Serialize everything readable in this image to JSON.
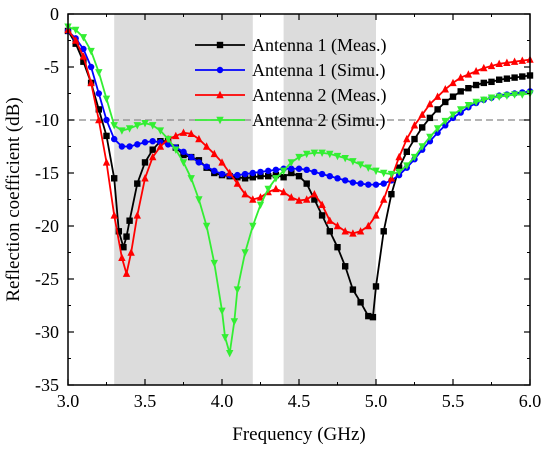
{
  "chart_data": {
    "type": "line",
    "title": "",
    "xlabel": "Frequency (GHz)",
    "ylabel": "Reflection coefficient (dB)",
    "xlim": [
      3.0,
      6.0
    ],
    "ylim": [
      -35,
      0
    ],
    "xticks": [
      "3.0",
      "3.5",
      "4.0",
      "4.5",
      "5.0",
      "5.5",
      "6.0"
    ],
    "yticks": [
      "0",
      "-5",
      "-10",
      "-15",
      "-20",
      "-25",
      "-30",
      "-35"
    ],
    "xtick_values": [
      3.0,
      3.5,
      4.0,
      4.5,
      5.0,
      5.5,
      6.0
    ],
    "ytick_values": [
      0,
      -5,
      -10,
      -15,
      -20,
      -25,
      -30,
      -35
    ],
    "grid": false,
    "legend_position": "top-right",
    "shaded_bands": [
      [
        3.3,
        4.2
      ],
      [
        4.4,
        5.0
      ]
    ],
    "reference_line": {
      "y": -10,
      "style": "dashed"
    },
    "series": [
      {
        "name": "Antenna 1 (Meas.)",
        "color": "#000000",
        "marker": "square",
        "x": [
          3.0,
          3.05,
          3.1,
          3.15,
          3.2,
          3.25,
          3.3,
          3.33,
          3.36,
          3.38,
          3.4,
          3.45,
          3.5,
          3.55,
          3.6,
          3.65,
          3.7,
          3.75,
          3.8,
          3.85,
          3.9,
          3.95,
          4.0,
          4.05,
          4.1,
          4.15,
          4.2,
          4.25,
          4.3,
          4.35,
          4.4,
          4.45,
          4.5,
          4.55,
          4.6,
          4.65,
          4.7,
          4.75,
          4.8,
          4.85,
          4.9,
          4.95,
          4.98,
          5.0,
          5.05,
          5.1,
          5.15,
          5.2,
          5.25,
          5.3,
          5.35,
          5.4,
          5.45,
          5.5,
          5.55,
          5.6,
          5.65,
          5.7,
          5.75,
          5.8,
          5.85,
          5.9,
          5.95,
          6.0
        ],
        "y": [
          -1.6,
          -2.8,
          -4.5,
          -6.5,
          -9.0,
          -11.5,
          -15.5,
          -20.5,
          -22.0,
          -21.0,
          -19.5,
          -16.0,
          -14.0,
          -12.8,
          -12.0,
          -12.0,
          -12.6,
          -13.3,
          -13.5,
          -13.8,
          -14.5,
          -15.0,
          -15.2,
          -15.3,
          -15.4,
          -15.5,
          -15.4,
          -15.3,
          -15.3,
          -15.2,
          -15.4,
          -15.0,
          -15.3,
          -16.0,
          -17.5,
          -19.0,
          -20.5,
          -22.0,
          -23.8,
          -26.0,
          -27.2,
          -28.5,
          -28.6,
          -25.7,
          -20.5,
          -17.0,
          -14.5,
          -13.0,
          -11.8,
          -10.7,
          -9.8,
          -9.0,
          -8.3,
          -7.8,
          -7.3,
          -7.0,
          -6.7,
          -6.5,
          -6.4,
          -6.2,
          -6.1,
          -6.0,
          -5.9,
          -5.8
        ]
      },
      {
        "name": "Antenna 1 (Simu.)",
        "color": "#0000ff",
        "marker": "circle",
        "x": [
          3.0,
          3.05,
          3.1,
          3.15,
          3.2,
          3.25,
          3.3,
          3.35,
          3.4,
          3.45,
          3.5,
          3.55,
          3.6,
          3.65,
          3.7,
          3.75,
          3.8,
          3.85,
          3.9,
          3.95,
          4.0,
          4.05,
          4.1,
          4.15,
          4.2,
          4.25,
          4.3,
          4.35,
          4.4,
          4.45,
          4.5,
          4.55,
          4.6,
          4.65,
          4.7,
          4.75,
          4.8,
          4.85,
          4.9,
          4.95,
          5.0,
          5.05,
          5.1,
          5.15,
          5.2,
          5.25,
          5.3,
          5.35,
          5.4,
          5.45,
          5.5,
          5.55,
          5.6,
          5.65,
          5.7,
          5.75,
          5.8,
          5.85,
          5.9,
          5.95,
          6.0
        ],
        "y": [
          -1.6,
          -2.3,
          -3.3,
          -5.0,
          -7.5,
          -10.0,
          -11.8,
          -12.5,
          -12.5,
          -12.3,
          -12.1,
          -12.0,
          -12.1,
          -12.3,
          -12.6,
          -13.0,
          -13.5,
          -14.0,
          -14.4,
          -14.8,
          -15.1,
          -15.2,
          -15.2,
          -15.1,
          -15.0,
          -14.9,
          -14.8,
          -14.7,
          -14.6,
          -14.6,
          -14.6,
          -14.7,
          -14.9,
          -15.1,
          -15.3,
          -15.5,
          -15.7,
          -15.9,
          -16.0,
          -16.1,
          -16.1,
          -16.0,
          -15.7,
          -15.2,
          -14.5,
          -13.7,
          -12.8,
          -12.0,
          -11.2,
          -10.5,
          -9.8,
          -9.3,
          -8.8,
          -8.4,
          -8.1,
          -7.9,
          -7.7,
          -7.6,
          -7.5,
          -7.4,
          -7.3
        ]
      },
      {
        "name": "Antenna 2 (Meas.)",
        "color": "#ff0000",
        "marker": "triangle-up",
        "x": [
          3.0,
          3.05,
          3.1,
          3.15,
          3.2,
          3.25,
          3.3,
          3.35,
          3.38,
          3.41,
          3.45,
          3.5,
          3.55,
          3.6,
          3.65,
          3.7,
          3.75,
          3.8,
          3.85,
          3.9,
          3.95,
          4.0,
          4.05,
          4.1,
          4.15,
          4.2,
          4.25,
          4.3,
          4.35,
          4.4,
          4.45,
          4.5,
          4.55,
          4.6,
          4.65,
          4.7,
          4.75,
          4.8,
          4.85,
          4.9,
          4.95,
          5.0,
          5.05,
          5.1,
          5.15,
          5.2,
          5.25,
          5.3,
          5.35,
          5.4,
          5.45,
          5.5,
          5.55,
          5.6,
          5.65,
          5.7,
          5.75,
          5.8,
          5.85,
          5.9,
          5.95,
          6.0
        ],
        "y": [
          -1.5,
          -2.5,
          -4.0,
          -6.5,
          -10.0,
          -14.0,
          -19.0,
          -23.0,
          -24.5,
          -22.5,
          -19.0,
          -15.5,
          -13.5,
          -12.5,
          -11.8,
          -11.5,
          -11.2,
          -11.3,
          -11.8,
          -12.5,
          -13.2,
          -14.0,
          -15.0,
          -16.0,
          -17.0,
          -17.5,
          -17.3,
          -16.8,
          -16.5,
          -16.8,
          -17.3,
          -17.6,
          -17.5,
          -17.0,
          -18.0,
          -19.5,
          -20.0,
          -20.5,
          -20.7,
          -20.5,
          -20.0,
          -19.0,
          -17.5,
          -15.5,
          -13.5,
          -11.8,
          -10.5,
          -9.5,
          -8.5,
          -7.8,
          -7.1,
          -6.5,
          -6.0,
          -5.7,
          -5.4,
          -5.1,
          -4.9,
          -4.7,
          -4.6,
          -4.5,
          -4.4,
          -4.3
        ]
      },
      {
        "name": "Antenna 2 (Simu.)",
        "color": "#33ee33",
        "marker": "triangle-down",
        "x": [
          3.0,
          3.05,
          3.1,
          3.15,
          3.2,
          3.25,
          3.3,
          3.35,
          3.4,
          3.45,
          3.5,
          3.55,
          3.6,
          3.65,
          3.7,
          3.75,
          3.8,
          3.85,
          3.9,
          3.95,
          4.0,
          4.02,
          4.05,
          4.08,
          4.1,
          4.15,
          4.2,
          4.25,
          4.3,
          4.35,
          4.4,
          4.45,
          4.5,
          4.55,
          4.6,
          4.65,
          4.7,
          4.75,
          4.8,
          4.85,
          4.9,
          4.95,
          5.0,
          5.05,
          5.1,
          5.15,
          5.2,
          5.25,
          5.3,
          5.35,
          5.4,
          5.45,
          5.5,
          5.55,
          5.6,
          5.65,
          5.7,
          5.75,
          5.8,
          5.85,
          5.9,
          5.95,
          6.0
        ],
        "y": [
          -1.2,
          -1.5,
          -2.2,
          -3.5,
          -5.5,
          -8.0,
          -10.5,
          -11.0,
          -10.8,
          -10.5,
          -10.3,
          -10.5,
          -11.0,
          -11.8,
          -12.8,
          -14.0,
          -15.5,
          -17.5,
          -20.0,
          -23.5,
          -28.0,
          -30.5,
          -32.0,
          -29.0,
          -26.0,
          -22.5,
          -20.0,
          -18.0,
          -16.5,
          -15.5,
          -14.8,
          -14.0,
          -13.5,
          -13.2,
          -13.1,
          -13.1,
          -13.2,
          -13.4,
          -13.6,
          -13.9,
          -14.2,
          -14.5,
          -14.8,
          -15.0,
          -15.1,
          -14.9,
          -14.3,
          -13.5,
          -12.5,
          -11.6,
          -10.8,
          -10.1,
          -9.5,
          -9.0,
          -8.6,
          -8.3,
          -8.1,
          -7.9,
          -7.8,
          -7.7,
          -7.6,
          -7.6,
          -7.5
        ]
      }
    ]
  }
}
